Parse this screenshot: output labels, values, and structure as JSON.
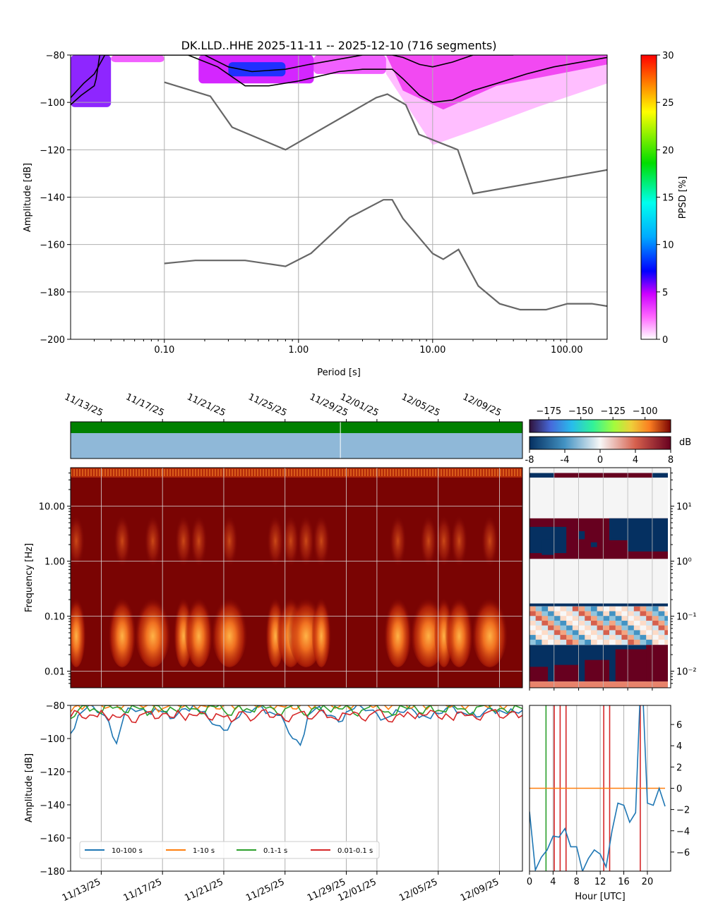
{
  "chart_data": [
    {
      "panel": "ppsd",
      "type": "heatmap",
      "title": "DK.LLD..HHE   2025-11-11 -- 2025-12-10  (716 segments)",
      "xlabel": "Period [s]",
      "ylabel": "Amplitude [dB]",
      "x_scale": "log",
      "xlim": [
        0.02,
        200
      ],
      "ylim": [
        -200,
        -80
      ],
      "x_ticks": [
        0.1,
        1,
        10,
        100
      ],
      "x_tick_labels": [
        "0.10",
        "1.00",
        "10.00",
        "100.00"
      ],
      "y_ticks": [
        -200,
        -180,
        -160,
        -140,
        -120,
        -100,
        -80
      ],
      "y_tick_labels": [
        "−200",
        "−180",
        "−160",
        "−140",
        "−120",
        "−100",
        "−80"
      ],
      "grid": true,
      "colorbar": {
        "label": "PPSD [%]",
        "range": [
          0,
          30
        ],
        "ticks": [
          0,
          5,
          10,
          15,
          20,
          25,
          30
        ],
        "tick_labels": [
          "0",
          "5",
          "10",
          "15",
          "20",
          "25",
          "30"
        ],
        "colors": [
          "#ffffff",
          "#ff00ff",
          "#0000ff",
          "#00ffff",
          "#00ff00",
          "#ffff00",
          "#ff0000"
        ]
      },
      "noise_model_high": {
        "period": [
          0.1,
          0.22,
          0.32,
          0.8,
          3.8,
          4.6,
          6.3,
          7.9,
          15.4,
          20,
          354.8
        ],
        "db": [
          -91.5,
          -97.4,
          -110.5,
          -120,
          -98,
          -96.5,
          -101,
          -113.5,
          -120,
          -138.5,
          -126
        ]
      },
      "noise_model_low": {
        "period": [
          0.1,
          0.17,
          0.4,
          0.8,
          1.24,
          2.4,
          4.3,
          5,
          6,
          10,
          12,
          15.6,
          21.9,
          31.6,
          45,
          70,
          101,
          154,
          200
        ],
        "db": [
          -168,
          -166.7,
          -166.7,
          -169.2,
          -163.7,
          -148.6,
          -141.1,
          -141.1,
          -149,
          -163.8,
          -166.2,
          -162.1,
          -177.5,
          -185,
          -187.5,
          -187.5,
          -185,
          -185,
          -186
        ]
      },
      "percentile_lower": {
        "period": [
          0.02,
          0.024,
          0.03,
          0.031,
          0.033,
          0.09,
          0.15,
          0.25,
          0.4,
          0.6,
          1,
          2,
          3,
          5,
          6,
          8,
          10,
          14,
          20,
          30,
          50,
          80,
          200
        ],
        "db": [
          -101,
          -97,
          -93,
          -90,
          -80,
          -80,
          -80,
          -85,
          -93,
          -93,
          -91,
          -87,
          -86,
          -86,
          -90,
          -97,
          -100,
          -99,
          -95,
          -92,
          -88,
          -85,
          -81
        ]
      },
      "percentile_upper": {
        "period": [
          0.02,
          0.025,
          0.03,
          0.036,
          0.08,
          0.2,
          0.3,
          0.45,
          0.8,
          1.2,
          3,
          5,
          6,
          8,
          10,
          14,
          20,
          40
        ],
        "db": [
          -98,
          -92,
          -88,
          -80,
          -80,
          -80,
          -85,
          -87,
          -86,
          -84,
          -80,
          -80,
          -81,
          -84,
          -85,
          -83,
          -80,
          -80
        ]
      },
      "density": [
        {
          "period_range": [
            0.02,
            0.04
          ],
          "db_range": [
            -102,
            -80
          ],
          "pct": 4
        },
        {
          "period_range": [
            0.04,
            0.1
          ],
          "db_range": [
            -83,
            -80
          ],
          "pct": 2
        },
        {
          "period_range": [
            0.18,
            1.3
          ],
          "db_range": [
            -92,
            -80
          ],
          "pct": 3
        },
        {
          "period_range": [
            0.3,
            0.8
          ],
          "db_range": [
            -89,
            -83
          ],
          "pct": 6
        },
        {
          "period_range": [
            1.3,
            4.5
          ],
          "db_range": [
            -88,
            -80
          ],
          "pct": 2
        },
        {
          "period_range": [
            4.5,
            200
          ],
          "db_range": [
            -125,
            -80
          ],
          "pct": 1
        }
      ]
    },
    {
      "panel": "spectrogram",
      "type": "heatmap",
      "ylabel": "Frequency [Hz]",
      "y_scale": "log",
      "ylim": [
        0.005,
        50
      ],
      "y_ticks": [
        0.01,
        0.1,
        1,
        10
      ],
      "y_tick_labels": [
        "0.01",
        "0.10",
        "1.00",
        "10.00"
      ],
      "date_range": [
        "2025-11-11",
        "2025-12-10"
      ],
      "x_ticks": [
        "2025-11-13",
        "2025-11-17",
        "2025-11-21",
        "2025-11-25",
        "2025-11-29",
        "2025-12-01",
        "2025-12-05",
        "2025-12-09"
      ],
      "x_tick_labels": [
        "11/13/25",
        "11/17/25",
        "11/21/25",
        "11/25/25",
        "11/29/25",
        "12/01/25",
        "12/05/25",
        "12/09/25"
      ],
      "colorbar_psd": {
        "ticks": [
          -175,
          -150,
          -125,
          -100
        ],
        "tick_labels": [
          "−175",
          "−150",
          "−125",
          "−100"
        ],
        "range": [
          -190,
          -80
        ]
      },
      "colorbar_diff": {
        "ticks": [
          -8,
          -4,
          0,
          4,
          8
        ],
        "tick_labels": [
          "-8",
          "-4",
          "0",
          "4",
          "8"
        ],
        "label": "dB",
        "range": [
          -8,
          8
        ]
      },
      "data_availability": {
        "gap_dates": [
          "2025-11-27"
        ],
        "coverage_color": "#008000"
      },
      "microseism_bursts": [
        "2025-11-11",
        "2025-11-14",
        "2025-11-16",
        "2025-11-18",
        "2025-11-19",
        "2025-11-21",
        "2025-11-24",
        "2025-11-25",
        "2025-11-26",
        "2025-11-27",
        "2025-12-02",
        "2025-12-04",
        "2025-12-05",
        "2025-12-06",
        "2025-12-08"
      ]
    },
    {
      "panel": "diurnal-variation",
      "type": "heatmap",
      "xlabel": "Hour [UTC]",
      "y_scale": "log",
      "ylim": [
        0.005,
        50
      ],
      "y_ticks": [
        0.01,
        0.1,
        1,
        10
      ],
      "y_tick_labels": [
        "10⁻²",
        "10⁻¹",
        "10⁰",
        "10¹"
      ],
      "xlim": [
        0,
        23
      ],
      "x_ticks": [
        0,
        4,
        8,
        12,
        16,
        20
      ]
    },
    {
      "panel": "band-amplitude",
      "type": "line",
      "ylabel": "Amplitude [dB]",
      "ylim": [
        -180,
        -80
      ],
      "y_ticks": [
        -180,
        -160,
        -140,
        -120,
        -100,
        -80
      ],
      "y_tick_labels": [
        "−180",
        "−160",
        "−140",
        "−120",
        "−100",
        "−80"
      ],
      "date_range": [
        "2025-11-11",
        "2025-12-10"
      ],
      "x_ticks": [
        "2025-11-13",
        "2025-11-17",
        "2025-11-21",
        "2025-11-25",
        "2025-11-29",
        "2025-12-01",
        "2025-12-05",
        "2025-12-09"
      ],
      "x_tick_labels": [
        "11/13/25",
        "11/17/25",
        "11/21/25",
        "11/25/25",
        "11/29/25",
        "12/01/25",
        "12/05/25",
        "12/09/25"
      ],
      "grid": "x",
      "legend_placement": "lower-left",
      "series": [
        {
          "name": "10-100 s",
          "color": "#1f77b4",
          "values_db": [
            -97,
            -86,
            -82,
            -81,
            -85,
            -90,
            -103,
            -86,
            -82,
            -83,
            -84,
            -82,
            -84,
            -88,
            -85,
            -82,
            -80,
            -84,
            -88,
            -92,
            -95,
            -90,
            -87,
            -84,
            -82,
            -81,
            -84,
            -86,
            -91,
            -100,
            -104,
            -86,
            -82,
            -84,
            -86,
            -90,
            -84,
            -82,
            -81,
            -83,
            -85,
            -88,
            -86,
            -84,
            -82,
            -84,
            -86,
            -88,
            -85,
            -82,
            -81,
            -84,
            -86,
            -87,
            -84,
            -82,
            -83,
            -85,
            -84,
            -83
          ]
        },
        {
          "name": "1-10 s",
          "color": "#ff7f0e",
          "values_db": [
            -84,
            -80,
            -80,
            -80,
            -80,
            -81,
            -80,
            -80,
            -80,
            -80,
            -80,
            -81,
            -82,
            -80,
            -80,
            -80,
            -80,
            -80,
            -81,
            -82,
            -80,
            -80,
            -80,
            -80,
            -80,
            -80,
            -80,
            -80,
            -81,
            -82,
            -80,
            -80,
            -80,
            -80,
            -80,
            -81,
            -80,
            -80,
            -80,
            -80,
            -80,
            -80,
            -80,
            -80,
            -81,
            -80,
            -80,
            -80,
            -80,
            -80,
            -80,
            -80,
            -80,
            -80,
            -80,
            -80,
            -80,
            -80,
            -80,
            -80
          ]
        },
        {
          "name": "0.1-1 s",
          "color": "#2ca02c",
          "values_db": [
            -88,
            -83,
            -80,
            -82,
            -85,
            -80,
            -81,
            -84,
            -80,
            -82,
            -86,
            -80,
            -83,
            -81,
            -84,
            -80,
            -82,
            -85,
            -80,
            -81,
            -83,
            -86,
            -80,
            -82,
            -84,
            -80,
            -81,
            -85,
            -82,
            -80,
            -83,
            -86,
            -81,
            -80,
            -84,
            -82,
            -80,
            -85,
            -83,
            -81,
            -80,
            -84,
            -86,
            -80,
            -82,
            -81,
            -85,
            -80,
            -83,
            -84,
            -80,
            -82,
            -85,
            -81,
            -80,
            -83,
            -82,
            -84,
            -80,
            -82
          ]
        },
        {
          "name": "0.01-0.1 s",
          "color": "#d62728",
          "values_db": [
            -87,
            -84,
            -88,
            -86,
            -83,
            -89,
            -87,
            -85,
            -90,
            -86,
            -84,
            -88,
            -85,
            -87,
            -83,
            -89,
            -86,
            -84,
            -88,
            -85,
            -87,
            -90,
            -84,
            -86,
            -88,
            -83,
            -87,
            -85,
            -89,
            -86,
            -84,
            -88,
            -86,
            -83,
            -87,
            -89,
            -85,
            -84,
            -88,
            -86,
            -83,
            -87,
            -90,
            -85,
            -84,
            -88,
            -86,
            -83,
            -87,
            -85,
            -89,
            -84,
            -86,
            -88,
            -85,
            -83,
            -87,
            -86,
            -84,
            -86
          ]
        }
      ]
    },
    {
      "panel": "band-diurnal",
      "type": "line",
      "xlabel": "Hour [UTC]",
      "xlim": [
        0,
        23
      ],
      "ylim": [
        -7.8,
        7.8
      ],
      "x_ticks": [
        0,
        4,
        8,
        12,
        16,
        20
      ],
      "y_ticks": [
        -6,
        -4,
        -2,
        0,
        2,
        4,
        6
      ],
      "y_tick_labels": [
        "−6",
        "−4",
        "−2",
        "0",
        "2",
        "4",
        "6"
      ],
      "grid": "x",
      "blue_hourly": [
        -2.2,
        -7.7,
        -6.5,
        -5.8,
        -4.5,
        -4.6,
        -3.8,
        -5.5,
        -5.5,
        -7.8,
        -6.6,
        -5.8,
        -6.2,
        -7.4,
        -4.0,
        -1.4,
        -1.6,
        -3.2,
        -2.3,
        12,
        -1.4,
        -1.6,
        0.0,
        -1.7
      ],
      "orange_hourly": [
        0,
        0,
        0,
        0,
        0,
        0,
        0,
        0,
        0,
        0,
        0,
        0,
        0,
        0,
        0,
        0,
        0,
        0,
        0,
        0,
        0,
        0,
        0,
        0
      ],
      "green_spike_hour": 2.8,
      "red_spike_hours": [
        4.2,
        5.2,
        6.2,
        12.6,
        13.6,
        18.8
      ]
    }
  ]
}
